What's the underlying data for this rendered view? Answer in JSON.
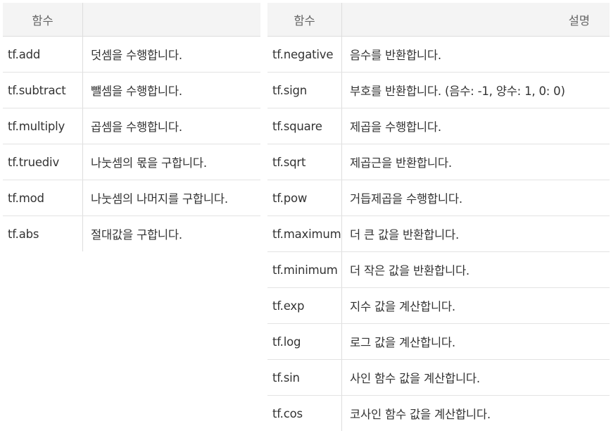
{
  "left_table": {
    "headers": [
      "함수",
      ""
    ],
    "rows": [
      {
        "func": "tf.add",
        "desc": "덧셈을 수행합니다."
      },
      {
        "func": "tf.subtract",
        "desc": "뺄셈을 수행합니다."
      },
      {
        "func": "tf.multiply",
        "desc": "곱셈을 수행합니다."
      },
      {
        "func": "tf.truediv",
        "desc": "나눗셈의 몫을 구합니다."
      },
      {
        "func": "tf.mod",
        "desc": "나눗셈의 나머지를 구합니다."
      },
      {
        "func": "tf.abs",
        "desc": "절대값을 구합니다."
      }
    ]
  },
  "right_table": {
    "headers": [
      "함수",
      "설명"
    ],
    "rows": [
      {
        "func": "tf.negative",
        "desc": "음수를 반환합니다."
      },
      {
        "func": "tf.sign",
        "desc": "부호를 반환합니다. (음수: -1, 양수: 1, 0: 0)"
      },
      {
        "func": "tf.square",
        "desc": "제곱을 수행합니다."
      },
      {
        "func": "tf.sqrt",
        "desc": "제곱근을 반환합니다."
      },
      {
        "func": "tf.pow",
        "desc": "거듭제곱을 수행합니다."
      },
      {
        "func": "tf.maximum",
        "desc": "더 큰 값을 반환합니다."
      },
      {
        "func": "tf.minimum",
        "desc": "더 작은 값을 반환합니다."
      },
      {
        "func": "tf.exp",
        "desc": "지수 값을 계산합니다."
      },
      {
        "func": "tf.log",
        "desc": "로그 값을 계산합니다."
      },
      {
        "func": "tf.sin",
        "desc": "사인 함수 값을 계산합니다."
      },
      {
        "func": "tf.cos",
        "desc": "코사인 함수 값을 계산합니다."
      }
    ]
  }
}
